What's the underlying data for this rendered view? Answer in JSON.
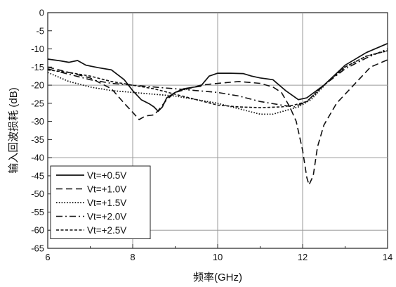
{
  "chart_data": {
    "type": "line",
    "xlabel": "频率(GHz)",
    "ylabel": "输入回波损耗 (dB)",
    "xlim": [
      6,
      14
    ],
    "ylim": [
      -65,
      0
    ],
    "x_ticks": [
      6,
      8,
      10,
      12,
      14
    ],
    "y_ticks": [
      0,
      -5,
      -10,
      -15,
      -20,
      -25,
      -30,
      -35,
      -40,
      -45,
      -50,
      -55,
      -60,
      -65
    ],
    "grid": true,
    "legend_position": "bottom-left",
    "series": [
      {
        "name": "Vt=+0.5V",
        "dash": "solid",
        "points": [
          [
            6.0,
            -12.8
          ],
          [
            6.3,
            -13.3
          ],
          [
            6.5,
            -13.7
          ],
          [
            6.7,
            -13.2
          ],
          [
            6.9,
            -14.5
          ],
          [
            7.2,
            -15.2
          ],
          [
            7.5,
            -15.8
          ],
          [
            7.8,
            -18.5
          ],
          [
            8.0,
            -21.5
          ],
          [
            8.2,
            -24.0
          ],
          [
            8.4,
            -25.2
          ],
          [
            8.5,
            -26.0
          ],
          [
            8.6,
            -27.2
          ],
          [
            8.7,
            -26.0
          ],
          [
            8.8,
            -23.5
          ],
          [
            9.0,
            -22.0
          ],
          [
            9.2,
            -21.0
          ],
          [
            9.4,
            -20.6
          ],
          [
            9.6,
            -20.3
          ],
          [
            9.8,
            -17.5
          ],
          [
            10.0,
            -16.7
          ],
          [
            10.3,
            -16.7
          ],
          [
            10.6,
            -16.8
          ],
          [
            10.8,
            -17.5
          ],
          [
            11.0,
            -18.0
          ],
          [
            11.3,
            -18.5
          ],
          [
            11.6,
            -21.5
          ],
          [
            11.9,
            -24.0
          ],
          [
            12.1,
            -23.5
          ],
          [
            12.5,
            -20.0
          ],
          [
            13.0,
            -14.5
          ],
          [
            13.5,
            -11.0
          ],
          [
            14.0,
            -8.5
          ]
        ]
      },
      {
        "name": "Vt=+1.0V",
        "dash": "long-dash",
        "points": [
          [
            6.0,
            -15.0
          ],
          [
            6.5,
            -16.5
          ],
          [
            7.0,
            -18.0
          ],
          [
            7.5,
            -21.0
          ],
          [
            7.8,
            -25.0
          ],
          [
            8.0,
            -27.5
          ],
          [
            8.15,
            -29.5
          ],
          [
            8.3,
            -28.5
          ],
          [
            8.5,
            -28.2
          ],
          [
            8.6,
            -27.0
          ],
          [
            8.8,
            -24.0
          ],
          [
            9.0,
            -22.0
          ],
          [
            9.3,
            -21.0
          ],
          [
            9.6,
            -20.0
          ],
          [
            10.0,
            -19.5
          ],
          [
            10.5,
            -19.0
          ],
          [
            11.0,
            -19.5
          ],
          [
            11.3,
            -20.5
          ],
          [
            11.5,
            -22.0
          ],
          [
            11.7,
            -26.0
          ],
          [
            11.85,
            -30.0
          ],
          [
            12.0,
            -38.0
          ],
          [
            12.1,
            -45.5
          ],
          [
            12.15,
            -47.5
          ],
          [
            12.25,
            -45.0
          ],
          [
            12.35,
            -37.0
          ],
          [
            12.5,
            -31.0
          ],
          [
            12.8,
            -25.0
          ],
          [
            13.2,
            -20.0
          ],
          [
            13.6,
            -15.0
          ],
          [
            14.0,
            -13.0
          ]
        ]
      },
      {
        "name": "Vt=+1.5V",
        "dash": "dotted",
        "points": [
          [
            6.0,
            -16.5
          ],
          [
            6.5,
            -19.0
          ],
          [
            7.0,
            -20.5
          ],
          [
            7.5,
            -21.5
          ],
          [
            8.0,
            -22.0
          ],
          [
            8.5,
            -22.5
          ],
          [
            9.0,
            -23.0
          ],
          [
            9.5,
            -24.0
          ],
          [
            10.0,
            -25.0
          ],
          [
            10.5,
            -26.5
          ],
          [
            11.0,
            -28.0
          ],
          [
            11.3,
            -28.0
          ],
          [
            11.6,
            -27.0
          ],
          [
            11.9,
            -26.0
          ],
          [
            12.2,
            -24.0
          ],
          [
            12.6,
            -19.0
          ],
          [
            13.0,
            -15.0
          ],
          [
            13.5,
            -12.0
          ],
          [
            14.0,
            -10.5
          ]
        ]
      },
      {
        "name": "Vt=+2.0V",
        "dash": "dash-dot",
        "points": [
          [
            6.0,
            -15.5
          ],
          [
            6.5,
            -17.0
          ],
          [
            7.0,
            -18.5
          ],
          [
            7.5,
            -19.5
          ],
          [
            8.0,
            -20.0
          ],
          [
            8.5,
            -20.5
          ],
          [
            9.0,
            -21.0
          ],
          [
            9.5,
            -21.5
          ],
          [
            10.0,
            -22.0
          ],
          [
            10.5,
            -23.0
          ],
          [
            11.0,
            -24.5
          ],
          [
            11.5,
            -25.5
          ],
          [
            11.8,
            -26.0
          ],
          [
            12.1,
            -24.5
          ],
          [
            12.5,
            -20.0
          ],
          [
            13.0,
            -15.5
          ],
          [
            13.5,
            -12.5
          ],
          [
            14.0,
            -10.0
          ]
        ]
      },
      {
        "name": "Vt=+2.5V",
        "dash": "short-dash",
        "points": [
          [
            6.0,
            -15.8
          ],
          [
            6.5,
            -16.5
          ],
          [
            7.0,
            -17.5
          ],
          [
            7.5,
            -19.0
          ],
          [
            8.0,
            -20.0
          ],
          [
            8.5,
            -21.0
          ],
          [
            9.0,
            -22.5
          ],
          [
            9.5,
            -24.0
          ],
          [
            10.0,
            -25.5
          ],
          [
            10.5,
            -26.0
          ],
          [
            11.0,
            -26.2
          ],
          [
            11.5,
            -26.0
          ],
          [
            11.8,
            -25.5
          ],
          [
            12.1,
            -24.5
          ],
          [
            12.5,
            -20.0
          ],
          [
            13.0,
            -15.0
          ],
          [
            13.5,
            -12.0
          ],
          [
            14.0,
            -10.5
          ]
        ]
      }
    ]
  }
}
